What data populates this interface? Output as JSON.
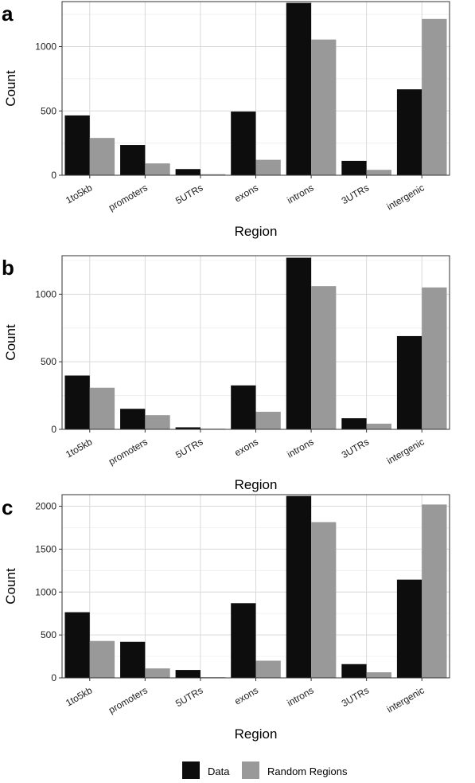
{
  "colors": {
    "data": "#0d0d0d",
    "random": "#999999",
    "grid": "#d9d9d9",
    "panel_border": "#333333"
  },
  "legend": {
    "items": [
      {
        "label": "Data",
        "color": "#0d0d0d"
      },
      {
        "label": "Random Regions",
        "color": "#999999"
      }
    ],
    "position": "bottom"
  },
  "chart_data": [
    {
      "type": "bar",
      "panel_label": "a",
      "xlabel": "Region",
      "ylabel": "Count",
      "categories": [
        "1to5kb",
        "promoters",
        "5UTRs",
        "exons",
        "introns",
        "3UTRs",
        "intergenic"
      ],
      "series": [
        {
          "name": "Data",
          "values": [
            465,
            235,
            48,
            495,
            1340,
            112,
            668
          ]
        },
        {
          "name": "Random Regions",
          "values": [
            290,
            92,
            8,
            120,
            1055,
            42,
            1215
          ]
        }
      ],
      "ylim": [
        0,
        1350
      ],
      "yticks": [
        0,
        500,
        1000
      ],
      "grid": true
    },
    {
      "type": "bar",
      "panel_label": "b",
      "xlabel": "Region",
      "ylabel": "Count",
      "categories": [
        "1to5kb",
        "promoters",
        "5UTRs",
        "exons",
        "introns",
        "3UTRs",
        "intergenic"
      ],
      "series": [
        {
          "name": "Data",
          "values": [
            398,
            152,
            15,
            325,
            1270,
            82,
            690
          ]
        },
        {
          "name": "Random Regions",
          "values": [
            308,
            105,
            5,
            130,
            1060,
            42,
            1050
          ]
        }
      ],
      "ylim": [
        0,
        1285
      ],
      "yticks": [
        0,
        500,
        1000
      ],
      "grid": true
    },
    {
      "type": "bar",
      "panel_label": "c",
      "xlabel": "Region",
      "ylabel": "Count",
      "categories": [
        "1to5kb",
        "promoters",
        "5UTRs",
        "exons",
        "introns",
        "3UTRs",
        "intergenic"
      ],
      "series": [
        {
          "name": "Data",
          "values": [
            765,
            420,
            92,
            870,
            2120,
            160,
            1145
          ]
        },
        {
          "name": "Random Regions",
          "values": [
            430,
            110,
            8,
            200,
            1815,
            65,
            2020
          ]
        }
      ],
      "ylim": [
        0,
        2135
      ],
      "yticks": [
        0,
        500,
        1000,
        1500,
        2000
      ],
      "grid": true
    }
  ]
}
